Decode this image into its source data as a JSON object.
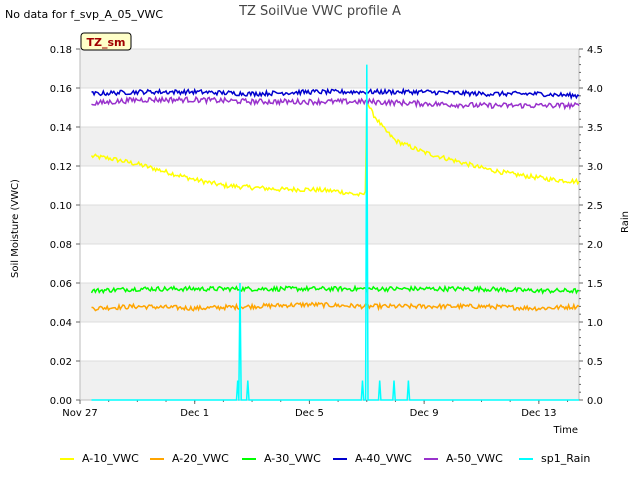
{
  "header": {
    "note": "No data for f_svp_A_05_VWC",
    "title": "TZ SoilVue VWC profile A"
  },
  "chart_data": {
    "type": "line",
    "title": "TZ SoilVue VWC profile A",
    "site_label": "TZ_sm",
    "xlabel": "Time",
    "ylabel": "Soil Moisture (VWC)",
    "y2label": "Rain",
    "x_ticks": [
      "Nov 27",
      "Dec 1",
      "Dec 5",
      "Dec 9",
      "Dec 13"
    ],
    "x_tick_days": [
      0,
      4,
      8,
      12,
      16
    ],
    "x_range_days": [
      0,
      17.4
    ],
    "ylim": [
      0,
      0.18
    ],
    "y_ticks": [
      "0.00",
      "0.02",
      "0.04",
      "0.06",
      "0.08",
      "0.10",
      "0.12",
      "0.14",
      "0.16",
      "0.18"
    ],
    "y2lim": [
      0,
      4.5
    ],
    "y2_ticks": [
      "0.0",
      "0.5",
      "1.0",
      "1.5",
      "2.0",
      "2.5",
      "3.0",
      "3.5",
      "4.0",
      "4.5"
    ],
    "grid": "horizontal banded",
    "legend_position": "bottom",
    "series": [
      {
        "name": "A-10_VWC",
        "color": "#ffff00",
        "axis": "left",
        "x": [
          0.4,
          1.0,
          2.0,
          3.0,
          4.0,
          5.0,
          6.0,
          7.0,
          8.0,
          9.0,
          9.8,
          9.95,
          10.0,
          10.2,
          10.6,
          11.0,
          12.0,
          13.0,
          14.0,
          15.0,
          16.0,
          16.5,
          17.4
        ],
        "y": [
          0.125,
          0.124,
          0.121,
          0.117,
          0.113,
          0.11,
          0.109,
          0.108,
          0.108,
          0.107,
          0.105,
          0.106,
          0.153,
          0.147,
          0.139,
          0.133,
          0.127,
          0.123,
          0.119,
          0.116,
          0.114,
          0.113,
          0.112
        ],
        "noise": 0.0012
      },
      {
        "name": "A-20_VWC",
        "color": "#ffa500",
        "axis": "left",
        "x": [
          0.4,
          2.0,
          4.0,
          6.0,
          8.0,
          10.0,
          12.0,
          14.0,
          16.0,
          17.4
        ],
        "y": [
          0.047,
          0.048,
          0.047,
          0.048,
          0.049,
          0.048,
          0.048,
          0.048,
          0.047,
          0.048
        ],
        "noise": 0.0012
      },
      {
        "name": "A-30_VWC",
        "color": "#00ff00",
        "axis": "left",
        "x": [
          0.4,
          2.0,
          4.0,
          6.0,
          8.0,
          10.0,
          12.0,
          14.0,
          16.0,
          17.4
        ],
        "y": [
          0.056,
          0.057,
          0.057,
          0.057,
          0.057,
          0.057,
          0.057,
          0.057,
          0.056,
          0.056
        ],
        "noise": 0.0012
      },
      {
        "name": "A-40_VWC",
        "color": "#0000cd",
        "axis": "left",
        "x": [
          0.4,
          2.0,
          4.0,
          6.0,
          8.0,
          10.0,
          12.0,
          14.0,
          16.0,
          17.4
        ],
        "y": [
          0.157,
          0.158,
          0.158,
          0.157,
          0.158,
          0.158,
          0.158,
          0.157,
          0.157,
          0.156
        ],
        "noise": 0.0012
      },
      {
        "name": "A-50_VWC",
        "color": "#9932cc",
        "axis": "left",
        "x": [
          0.4,
          2.0,
          4.0,
          6.0,
          8.0,
          10.0,
          12.0,
          14.0,
          16.0,
          17.4
        ],
        "y": [
          0.152,
          0.154,
          0.154,
          0.153,
          0.153,
          0.153,
          0.152,
          0.151,
          0.151,
          0.151
        ],
        "noise": 0.0014
      },
      {
        "name": "sp1_Rain",
        "color": "#00ffff",
        "axis": "right",
        "spikes": [
          {
            "x": 5.5,
            "y": 0.25
          },
          {
            "x": 5.58,
            "y": 1.5
          },
          {
            "x": 5.85,
            "y": 0.25
          },
          {
            "x": 9.85,
            "y": 0.25
          },
          {
            "x": 10.0,
            "y": 4.3
          },
          {
            "x": 10.45,
            "y": 0.25
          },
          {
            "x": 10.95,
            "y": 0.25
          },
          {
            "x": 11.45,
            "y": 0.25
          }
        ]
      }
    ]
  }
}
